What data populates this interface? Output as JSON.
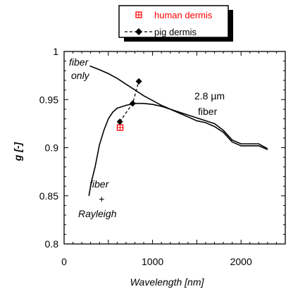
{
  "chart_data": {
    "type": "line",
    "xlabel": "Wavelength [nm]",
    "ylabel": "g [-]",
    "xlim": [
      0,
      2500
    ],
    "ylim": [
      0.8,
      1.0
    ],
    "x_ticks": [
      "0",
      "1000",
      "2000"
    ],
    "x_tick_values": [
      0,
      1000,
      2000
    ],
    "y_ticks": [
      "0.8",
      "0.85",
      "0.9",
      "0.95",
      "1"
    ],
    "y_tick_values": [
      0.8,
      0.85,
      0.9,
      0.95,
      1.0
    ],
    "legend": {
      "position": "top-center",
      "entries": [
        {
          "label": "human dermis",
          "marker": "hatched-square",
          "color": "#ff0000"
        },
        {
          "label": "pig dermis",
          "marker": "diamond",
          "line": "dashed",
          "color": "#000000"
        }
      ]
    },
    "annotations": {
      "fiber_only": [
        "fiber",
        "only"
      ],
      "fiber_rayleigh": [
        "fiber",
        "+",
        "Rayleigh"
      ],
      "fiber_size": [
        "2.8 µm",
        "fiber"
      ]
    },
    "series": [
      {
        "name": "fiber only",
        "line": "solid",
        "color": "#000000",
        "x": [
          290,
          400,
          500,
          600,
          700,
          800,
          900,
          1000,
          1100,
          1200,
          1300,
          1400,
          1500,
          1600,
          1700,
          1800,
          1900,
          2000,
          2100,
          2200,
          2300
        ],
        "y": [
          0.985,
          0.981,
          0.977,
          0.972,
          0.966,
          0.96,
          0.954,
          0.949,
          0.944,
          0.94,
          0.936,
          0.932,
          0.928,
          0.926,
          0.922,
          0.916,
          0.906,
          0.902,
          0.902,
          0.902,
          0.898
        ]
      },
      {
        "name": "fiber + Rayleigh",
        "line": "solid",
        "color": "#000000",
        "x": [
          280,
          310,
          350,
          400,
          450,
          500,
          550,
          600,
          700,
          800,
          900,
          1000,
          1100,
          1200,
          1300,
          1400,
          1500,
          1600,
          1700,
          1800,
          1900,
          2000,
          2100,
          2200,
          2300
        ],
        "y": [
          0.85,
          0.865,
          0.88,
          0.903,
          0.918,
          0.93,
          0.937,
          0.941,
          0.944,
          0.946,
          0.946,
          0.945,
          0.943,
          0.94,
          0.937,
          0.934,
          0.931,
          0.928,
          0.925,
          0.918,
          0.908,
          0.904,
          0.904,
          0.904,
          0.899
        ]
      },
      {
        "name": "pig dermis",
        "line": "dashed",
        "marker": "diamond",
        "color": "#000000",
        "x": [
          630,
          775,
          845
        ],
        "y": [
          0.927,
          0.946,
          0.969
        ]
      },
      {
        "name": "human dermis",
        "marker": "hatched-square",
        "color": "#ff0000",
        "x": [
          633
        ],
        "y": [
          0.921
        ]
      }
    ]
  }
}
